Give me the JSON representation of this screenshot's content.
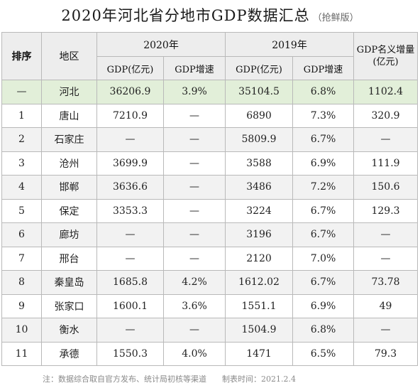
{
  "title": {
    "main": "2020年河北省分地市GDP数据汇总",
    "sub": "（抢鲜版）"
  },
  "headers": {
    "rank": "排序",
    "region": "地区",
    "y2020": "2020年",
    "y2019": "2019年",
    "gdp": "GDP(亿元)",
    "growth": "GDP增速",
    "nominal_growth": "GDP名义增量(亿元)"
  },
  "rows": [
    {
      "rank": "—",
      "region": "河北",
      "gdp2020": "36206.9",
      "growth2020": "3.9%",
      "gdp2019": "35104.5",
      "growth2019": "6.8%",
      "increment": "1102.4"
    },
    {
      "rank": "1",
      "region": "唐山",
      "gdp2020": "7210.9",
      "growth2020": "—",
      "gdp2019": "6890",
      "growth2019": "7.3%",
      "increment": "320.9"
    },
    {
      "rank": "2",
      "region": "石家庄",
      "gdp2020": "—",
      "growth2020": "—",
      "gdp2019": "5809.9",
      "growth2019": "6.7%",
      "increment": "—"
    },
    {
      "rank": "3",
      "region": "沧州",
      "gdp2020": "3699.9",
      "growth2020": "—",
      "gdp2019": "3588",
      "growth2019": "6.9%",
      "increment": "111.9"
    },
    {
      "rank": "4",
      "region": "邯郸",
      "gdp2020": "3636.6",
      "growth2020": "—",
      "gdp2019": "3486",
      "growth2019": "7.2%",
      "increment": "150.6"
    },
    {
      "rank": "5",
      "region": "保定",
      "gdp2020": "3353.3",
      "growth2020": "—",
      "gdp2019": "3224",
      "growth2019": "6.7%",
      "increment": "129.3"
    },
    {
      "rank": "6",
      "region": "廊坊",
      "gdp2020": "—",
      "growth2020": "—",
      "gdp2019": "3196",
      "growth2019": "6.7%",
      "increment": "—"
    },
    {
      "rank": "7",
      "region": "邢台",
      "gdp2020": "—",
      "growth2020": "—",
      "gdp2019": "2120",
      "growth2019": "7.0%",
      "increment": "—"
    },
    {
      "rank": "8",
      "region": "秦皇岛",
      "gdp2020": "1685.8",
      "growth2020": "4.2%",
      "gdp2019": "1612.02",
      "growth2019": "6.7%",
      "increment": "73.78"
    },
    {
      "rank": "9",
      "region": "张家口",
      "gdp2020": "1600.1",
      "growth2020": "3.6%",
      "gdp2019": "1551.1",
      "growth2019": "6.9%",
      "increment": "49"
    },
    {
      "rank": "10",
      "region": "衡水",
      "gdp2020": "—",
      "growth2020": "—",
      "gdp2019": "1504.9",
      "growth2019": "6.8%",
      "increment": "—"
    },
    {
      "rank": "11",
      "region": "承德",
      "gdp2020": "1550.3",
      "growth2020": "4.0%",
      "gdp2019": "1471",
      "growth2019": "6.5%",
      "increment": "79.3"
    }
  ],
  "footer": {
    "note": "注：数据综合取自官方发布、统计局初核等渠道",
    "time": "制表时间：2021.2.4"
  }
}
